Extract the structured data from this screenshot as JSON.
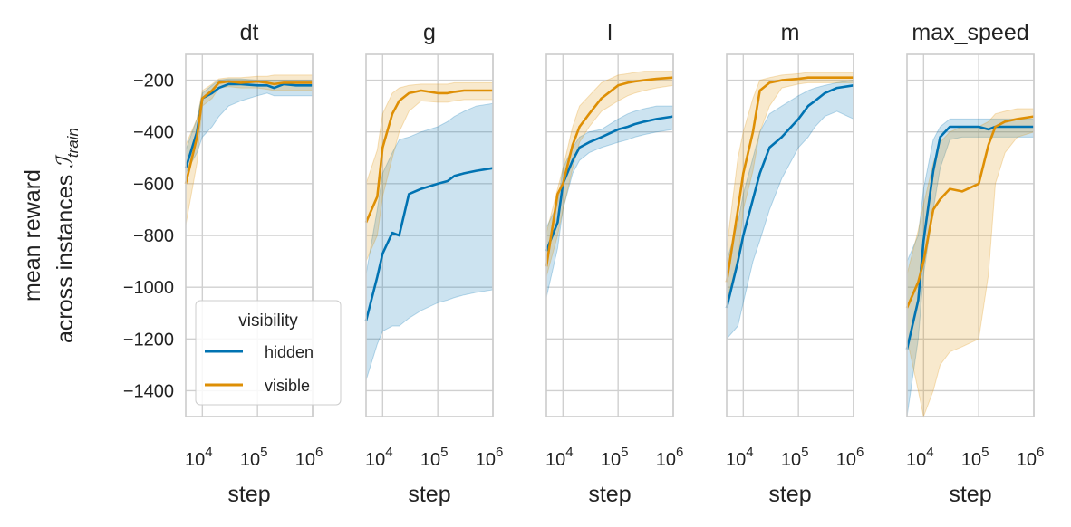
{
  "figure": {
    "ylabel_line1": "mean reward",
    "ylabel_line2": "across instances",
    "ylabel_math": "ℐ",
    "ylabel_sub": "train",
    "xlabel": "step"
  },
  "legend": {
    "title": "visibility",
    "placement": "lower-left of first panel",
    "entries": [
      {
        "label": "hidden",
        "color": "#0173b2"
      },
      {
        "label": "visible",
        "color": "#de8f05"
      }
    ]
  },
  "chart_data": [
    {
      "type": "line",
      "title": "dt",
      "xlabel": "step",
      "xscale": "log",
      "xlim": [
        5000,
        1000000
      ],
      "ylim": [
        -1500,
        -100
      ],
      "grid": true,
      "x": [
        5000,
        8000,
        10000,
        15000,
        20000,
        30000,
        50000,
        100000,
        150000,
        200000,
        300000,
        500000,
        1000000
      ],
      "series": [
        {
          "name": "hidden",
          "values": [
            -540,
            -400,
            -270,
            -250,
            -230,
            -215,
            -215,
            -220,
            -220,
            -230,
            -215,
            -220,
            -220
          ],
          "lower": [
            -560,
            -480,
            -420,
            -380,
            -340,
            -300,
            -280,
            -260,
            -250,
            -260,
            -260,
            -260,
            -260
          ],
          "upper": [
            -470,
            -350,
            -250,
            -220,
            -200,
            -195,
            -195,
            -200,
            -200,
            -200,
            -200,
            -200,
            -200
          ]
        },
        {
          "name": "visible",
          "values": [
            -600,
            -420,
            -270,
            -240,
            -210,
            -205,
            -210,
            -205,
            -210,
            -215,
            -210,
            -210,
            -210
          ],
          "lower": [
            -760,
            -520,
            -300,
            -270,
            -230,
            -225,
            -230,
            -230,
            -235,
            -240,
            -240,
            -240,
            -240
          ],
          "upper": [
            -450,
            -350,
            -240,
            -215,
            -195,
            -190,
            -190,
            -185,
            -185,
            -180,
            -180,
            -180,
            -180
          ]
        }
      ]
    },
    {
      "type": "line",
      "title": "g",
      "xlabel": "step",
      "xscale": "log",
      "xlim": [
        5000,
        1000000
      ],
      "ylim": [
        -1500,
        -100
      ],
      "grid": true,
      "x": [
        5000,
        8000,
        10000,
        15000,
        20000,
        30000,
        50000,
        100000,
        150000,
        200000,
        300000,
        500000,
        1000000
      ],
      "series": [
        {
          "name": "hidden",
          "values": [
            -1130,
            -960,
            -870,
            -790,
            -800,
            -640,
            -620,
            -600,
            -590,
            -570,
            -560,
            -550,
            -540
          ],
          "lower": [
            -1360,
            -1220,
            -1170,
            -1150,
            -1150,
            -1120,
            -1090,
            -1060,
            -1050,
            -1040,
            -1030,
            -1020,
            -1010
          ],
          "upper": [
            -950,
            -700,
            -560,
            -480,
            -430,
            -420,
            -400,
            -380,
            -360,
            -340,
            -320,
            -300,
            -290
          ]
        },
        {
          "name": "visible",
          "values": [
            -750,
            -650,
            -460,
            -330,
            -280,
            -250,
            -240,
            -250,
            -250,
            -245,
            -240,
            -240,
            -240
          ],
          "lower": [
            -900,
            -800,
            -650,
            -500,
            -400,
            -320,
            -280,
            -285,
            -285,
            -280,
            -275,
            -275,
            -275
          ],
          "upper": [
            -600,
            -470,
            -330,
            -250,
            -230,
            -220,
            -215,
            -215,
            -215,
            -210,
            -210,
            -210,
            -210
          ]
        }
      ]
    },
    {
      "type": "line",
      "title": "l",
      "xlabel": "step",
      "xscale": "log",
      "xlim": [
        5000,
        1000000
      ],
      "ylim": [
        -1500,
        -100
      ],
      "grid": true,
      "x": [
        5000,
        8000,
        10000,
        15000,
        20000,
        30000,
        50000,
        100000,
        150000,
        200000,
        300000,
        500000,
        1000000
      ],
      "series": [
        {
          "name": "hidden",
          "values": [
            -860,
            -750,
            -600,
            -510,
            -460,
            -440,
            -420,
            -390,
            -380,
            -370,
            -360,
            -350,
            -340
          ],
          "lower": [
            -1040,
            -850,
            -700,
            -560,
            -510,
            -480,
            -460,
            -440,
            -430,
            -420,
            -410,
            -400,
            -390
          ],
          "upper": [
            -770,
            -680,
            -540,
            -460,
            -420,
            -400,
            -390,
            -350,
            -330,
            -320,
            -310,
            -300,
            -300
          ]
        },
        {
          "name": "visible",
          "values": [
            -920,
            -640,
            -600,
            -450,
            -380,
            -330,
            -270,
            -220,
            -210,
            -205,
            -200,
            -195,
            -190
          ],
          "lower": [
            -960,
            -800,
            -700,
            -540,
            -440,
            -380,
            -320,
            -280,
            -260,
            -250,
            -240,
            -230,
            -220
          ],
          "upper": [
            -790,
            -620,
            -540,
            -380,
            -300,
            -260,
            -210,
            -180,
            -175,
            -170,
            -165,
            -165,
            -165
          ]
        }
      ]
    },
    {
      "type": "line",
      "title": "m",
      "xlabel": "step",
      "xscale": "log",
      "xlim": [
        5000,
        1000000
      ],
      "ylim": [
        -1500,
        -100
      ],
      "grid": true,
      "x": [
        5000,
        8000,
        10000,
        15000,
        20000,
        30000,
        50000,
        100000,
        150000,
        200000,
        300000,
        500000,
        1000000
      ],
      "series": [
        {
          "name": "hidden",
          "values": [
            -1080,
            -900,
            -800,
            -660,
            -560,
            -460,
            -420,
            -350,
            -300,
            -280,
            -250,
            -230,
            -220
          ],
          "lower": [
            -1200,
            -1150,
            -1060,
            -900,
            -820,
            -700,
            -580,
            -460,
            -420,
            -380,
            -340,
            -320,
            -350
          ],
          "upper": [
            -900,
            -750,
            -640,
            -500,
            -400,
            -330,
            -300,
            -260,
            -240,
            -230,
            -220,
            -210,
            -200
          ]
        },
        {
          "name": "visible",
          "values": [
            -980,
            -700,
            -560,
            -400,
            -240,
            -210,
            -200,
            -195,
            -190,
            -190,
            -190,
            -190,
            -190
          ],
          "lower": [
            -1050,
            -900,
            -700,
            -550,
            -400,
            -300,
            -230,
            -215,
            -210,
            -210,
            -210,
            -210,
            -210
          ],
          "upper": [
            -850,
            -500,
            -400,
            -270,
            -200,
            -190,
            -180,
            -175,
            -170,
            -170,
            -170,
            -170,
            -170
          ]
        }
      ]
    },
    {
      "type": "line",
      "title": "max_speed",
      "xlabel": "step",
      "xscale": "log",
      "xlim": [
        5000,
        1000000
      ],
      "ylim": [
        -1500,
        -100
      ],
      "grid": true,
      "x": [
        5000,
        8000,
        10000,
        15000,
        20000,
        30000,
        50000,
        100000,
        150000,
        200000,
        300000,
        500000,
        1000000
      ],
      "series": [
        {
          "name": "hidden",
          "values": [
            -1240,
            -1050,
            -820,
            -550,
            -420,
            -380,
            -380,
            -380,
            -390,
            -380,
            -380,
            -380,
            -380
          ],
          "lower": [
            -1500,
            -1200,
            -950,
            -700,
            -540,
            -430,
            -420,
            -420,
            -420,
            -420,
            -420,
            -420,
            -420
          ],
          "upper": [
            -900,
            -800,
            -620,
            -430,
            -380,
            -350,
            -350,
            -350,
            -350,
            -350,
            -350,
            -350,
            -350
          ]
        },
        {
          "name": "visible",
          "values": [
            -1080,
            -980,
            -900,
            -700,
            -660,
            -620,
            -630,
            -600,
            -450,
            -380,
            -360,
            -350,
            -340
          ],
          "lower": [
            -1200,
            -1400,
            -1500,
            -1400,
            -1300,
            -1250,
            -1230,
            -1200,
            -950,
            -600,
            -480,
            -420,
            -400
          ],
          "upper": [
            -950,
            -780,
            -680,
            -520,
            -440,
            -400,
            -380,
            -380,
            -360,
            -330,
            -320,
            -310,
            -310
          ]
        }
      ]
    }
  ]
}
